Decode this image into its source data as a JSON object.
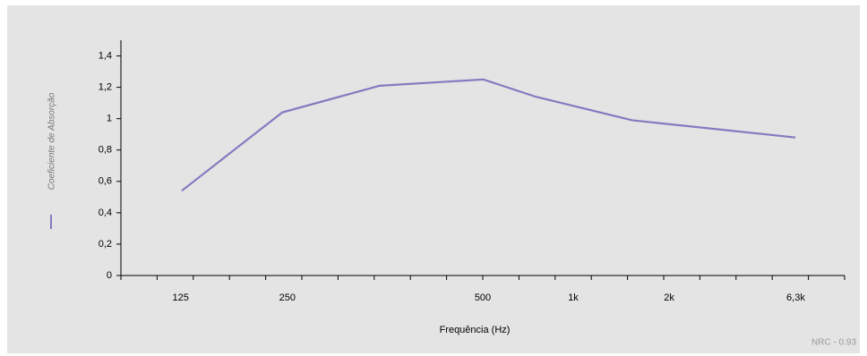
{
  "chart_data": {
    "type": "line",
    "y_label": "Coeficiente de Absorção",
    "x_label": "Frequência (Hz)",
    "note": "NRC - 0.93",
    "xlim": [
      0,
      20
    ],
    "xticks": [
      {
        "value": 1.65,
        "label": "125"
      },
      {
        "value": 4.6,
        "label": "250"
      },
      {
        "value": 10,
        "label": "500"
      },
      {
        "value": 12.5,
        "label": "1k"
      },
      {
        "value": 15.15,
        "label": "2k"
      },
      {
        "value": 18.65,
        "label": "6,3k"
      }
    ],
    "ylim": [
      0,
      1.5
    ],
    "yticks": [
      0,
      {
        "value": 0.2,
        "label": "0,2"
      },
      {
        "value": 0.4,
        "label": "0,4"
      },
      {
        "value": 0.6,
        "label": "0,6"
      },
      {
        "value": 0.8,
        "label": "0,8"
      },
      1,
      {
        "value": 1.2,
        "label": "1,2"
      },
      {
        "value": 1.4,
        "label": "1,4"
      }
    ],
    "series": [
      {
        "color": "#8878c0",
        "x": [
          1.68,
          4.46,
          7.15,
          10.02,
          11.46,
          14.13,
          18.64
        ],
        "values": [
          0.54,
          1.04,
          1.21,
          1.25,
          1.14,
          0.99,
          0.88
        ]
      }
    ]
  }
}
